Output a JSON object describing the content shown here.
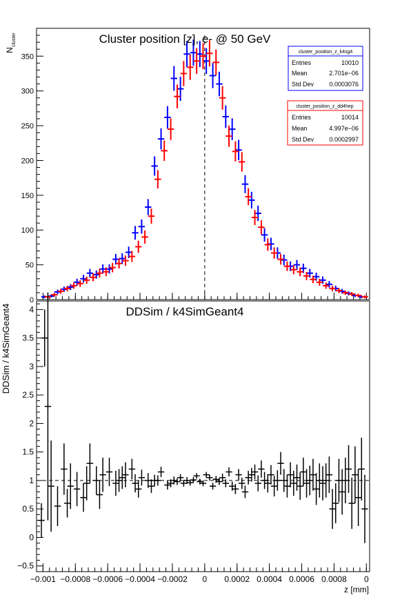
{
  "chart_data": [
    {
      "type": "scatter",
      "title": "Cluster position [z], e- @ 50 GeV",
      "ylabel": "N_cluster",
      "ylabel_main": "N",
      "ylabel_sub": "cluster",
      "xlim": [
        -0.00104,
        0.00102
      ],
      "ylim": [
        0,
        390
      ],
      "yticks": [
        "0",
        "50",
        "100",
        "150",
        "200",
        "250",
        "300",
        "350"
      ],
      "reference_line_x": 0,
      "series": [
        {
          "name": "cluster_position_z_k4sg4",
          "color": "#0000ff",
          "x": [
            -0.00099,
            -0.00095,
            -0.00091,
            -0.00087,
            -0.00083,
            -0.00079,
            -0.00075,
            -0.00071,
            -0.00067,
            -0.00063,
            -0.00059,
            -0.00055,
            -0.00051,
            -0.00047,
            -0.00043,
            -0.00039,
            -0.00035,
            -0.00031,
            -0.00027,
            -0.00023,
            -0.00019,
            -0.00015,
            -0.00011,
            -7e-05,
            -3e-05,
            1e-05,
            5e-05,
            9e-05,
            0.00013,
            0.00017,
            0.00021,
            0.00025,
            0.00029,
            0.00033,
            0.00037,
            0.00041,
            0.00045,
            0.00049,
            0.00053,
            0.00057,
            0.00061,
            0.00065,
            0.00069,
            0.00073,
            0.00077,
            0.00081,
            0.00085,
            0.00089,
            0.00093,
            0.00097
          ],
          "y": [
            4,
            5,
            11,
            15,
            18,
            25,
            30,
            38,
            36,
            44,
            44,
            58,
            59,
            68,
            96,
            105,
            133,
            192,
            231,
            262,
            318,
            303,
            353,
            355,
            353,
            343,
            322,
            310,
            263,
            245,
            215,
            166,
            143,
            124,
            93,
            80,
            67,
            57,
            48,
            50,
            45,
            38,
            33,
            28,
            22,
            16,
            12,
            9,
            6,
            4
          ]
        },
        {
          "name": "cluster_position_z_dd4hep",
          "color": "#ff0000",
          "x": [
            -0.00097,
            -0.00093,
            -0.00089,
            -0.00085,
            -0.00081,
            -0.00077,
            -0.00073,
            -0.00069,
            -0.00065,
            -0.00061,
            -0.00057,
            -0.00053,
            -0.00049,
            -0.00045,
            -0.00041,
            -0.00037,
            -0.00033,
            -0.00029,
            -0.00025,
            -0.00021,
            -0.00017,
            -0.00013,
            -9e-05,
            -5e-05,
            -1e-05,
            3e-05,
            7e-05,
            0.00011,
            0.00015,
            0.00019,
            0.00023,
            0.00027,
            0.00031,
            0.00035,
            0.00039,
            0.00043,
            0.00047,
            0.00051,
            0.00055,
            0.00059,
            0.00063,
            0.00067,
            0.00071,
            0.00075,
            0.00079,
            0.00083,
            0.00087,
            0.00091,
            0.00095,
            0.00099
          ],
          "y": [
            4,
            7,
            12,
            16,
            20,
            23,
            28,
            32,
            38,
            40,
            46,
            52,
            56,
            62,
            76,
            90,
            120,
            173,
            214,
            245,
            292,
            325,
            334,
            343,
            350,
            354,
            341,
            290,
            235,
            213,
            198,
            148,
            118,
            104,
            79,
            67,
            58,
            48,
            43,
            40,
            34,
            29,
            25,
            20,
            16,
            13,
            10,
            8,
            6,
            4
          ]
        }
      ],
      "stats_boxes": [
        {
          "title": "cluster_position_z_k4sg4",
          "color": "#0000ff",
          "rows": [
            {
              "label": "Entries",
              "value": "10010"
            },
            {
              "label": "Mean",
              "value": "2.701e−06"
            },
            {
              "label": "Std Dev",
              "value": "0.0003076"
            }
          ]
        },
        {
          "title": "cluster_position_z_dd4hep",
          "color": "#ff0000",
          "rows": [
            {
              "label": "Entries",
              "value": "10014"
            },
            {
              "label": "Mean",
              "value": "4.997e−06"
            },
            {
              "label": "Std Dev",
              "value": "0.0002997"
            }
          ]
        }
      ]
    },
    {
      "type": "scatter",
      "title": "DDSim / k4SimGeant4",
      "ylabel": "DDSim / k4SimGeant4",
      "xlabel": "z [mm]",
      "xlim": [
        -0.00104,
        0.00102
      ],
      "ylim": [
        -0.6,
        4.15
      ],
      "yticks": [
        "−0.5",
        "0",
        "0.5",
        "1",
        "1.5",
        "2",
        "2.5",
        "3",
        "3.5",
        "4"
      ],
      "xticks": [
        "−0.001",
        "−0.0008",
        "−0.0006",
        "−0.0004",
        "−0.0002",
        "0",
        "0.0002",
        "0.0004",
        "0.0006",
        "0.0008",
        "0"
      ],
      "reference_line_y": 1,
      "color": "#000000",
      "x": [
        -0.00101,
        -0.00099,
        -0.00097,
        -0.00095,
        -0.00091,
        -0.00087,
        -0.00085,
        -0.00083,
        -0.00079,
        -0.00075,
        -0.00073,
        -0.00071,
        -0.00067,
        -0.00065,
        -0.00063,
        -0.00059,
        -0.00055,
        -0.00053,
        -0.00051,
        -0.00049,
        -0.00045,
        -0.00043,
        -0.00041,
        -0.00039,
        -0.00035,
        -0.00033,
        -0.00031,
        -0.00029,
        -0.00027,
        -0.00023,
        -0.00021,
        -0.00019,
        -0.00017,
        -0.00015,
        -0.00013,
        -0.00011,
        -9e-05,
        -7e-05,
        -5e-05,
        -3e-05,
        -1e-05,
        1e-05,
        3e-05,
        5e-05,
        7e-05,
        9e-05,
        0.00011,
        0.00013,
        0.00015,
        0.00017,
        0.00019,
        0.00021,
        0.00023,
        0.00025,
        0.00027,
        0.00029,
        0.00031,
        0.00033,
        0.00035,
        0.00037,
        0.00039,
        0.00041,
        0.00043,
        0.00045,
        0.00047,
        0.00049,
        0.00051,
        0.00053,
        0.00055,
        0.00057,
        0.00059,
        0.00061,
        0.00063,
        0.00065,
        0.00067,
        0.00069,
        0.00071,
        0.00073,
        0.00075,
        0.00077,
        0.00079,
        0.00081,
        0.00083,
        0.00085,
        0.00087,
        0.00089,
        0.00091,
        0.00093,
        0.00095,
        0.00097,
        0.00099
      ],
      "y": [
        0.3,
        3.5,
        2.3,
        0.9,
        0.55,
        1.2,
        0.6,
        0.9,
        0.85,
        0.7,
        0.95,
        1.3,
        1.0,
        0.75,
        1.1,
        1.15,
        0.95,
        1.0,
        1.05,
        1.1,
        1.2,
        0.95,
        0.85,
        1.05,
        1.0,
        0.9,
        1.0,
        1.0,
        1.15,
        0.92,
        0.95,
        1.0,
        0.98,
        1.05,
        0.95,
        1.0,
        0.96,
        1.01,
        1.08,
        0.98,
        0.95,
        1.1,
        1.05,
        0.9,
        1.02,
        0.98,
        1.05,
        0.95,
        1.15,
        0.9,
        0.85,
        1.1,
        0.95,
        0.8,
        1.05,
        1.1,
        1.15,
        0.95,
        1.2,
        1.0,
        0.95,
        1.1,
        0.9,
        1.0,
        1.3,
        1.0,
        0.9,
        1.1,
        0.95,
        1.05,
        0.9,
        1.15,
        0.95,
        1.0,
        1.1,
        0.85,
        1.0,
        0.95,
        1.0,
        1.1,
        0.5,
        0.6,
        1.0,
        0.8,
        1.0,
        1.2,
        0.6,
        1.1,
        0.7,
        1.2,
        0.5
      ],
      "yerr": [
        0.3,
        0.5,
        2.0,
        0.8,
        0.35,
        0.45,
        0.25,
        0.4,
        0.3,
        0.25,
        0.3,
        0.35,
        0.25,
        0.25,
        0.3,
        0.25,
        0.22,
        0.2,
        0.2,
        0.22,
        0.18,
        0.16,
        0.15,
        0.14,
        0.13,
        0.12,
        0.1,
        0.09,
        0.09,
        0.08,
        0.07,
        0.07,
        0.06,
        0.06,
        0.06,
        0.06,
        0.05,
        0.05,
        0.05,
        0.05,
        0.05,
        0.05,
        0.05,
        0.06,
        0.06,
        0.06,
        0.07,
        0.07,
        0.08,
        0.08,
        0.09,
        0.1,
        0.1,
        0.11,
        0.12,
        0.12,
        0.13,
        0.14,
        0.15,
        0.15,
        0.16,
        0.17,
        0.18,
        0.18,
        0.2,
        0.2,
        0.2,
        0.22,
        0.22,
        0.23,
        0.24,
        0.25,
        0.25,
        0.26,
        0.28,
        0.28,
        0.3,
        0.3,
        0.3,
        0.32,
        0.35,
        0.35,
        0.38,
        0.4,
        0.4,
        0.42,
        0.45,
        0.5,
        0.5,
        0.55,
        0.6
      ]
    }
  ]
}
